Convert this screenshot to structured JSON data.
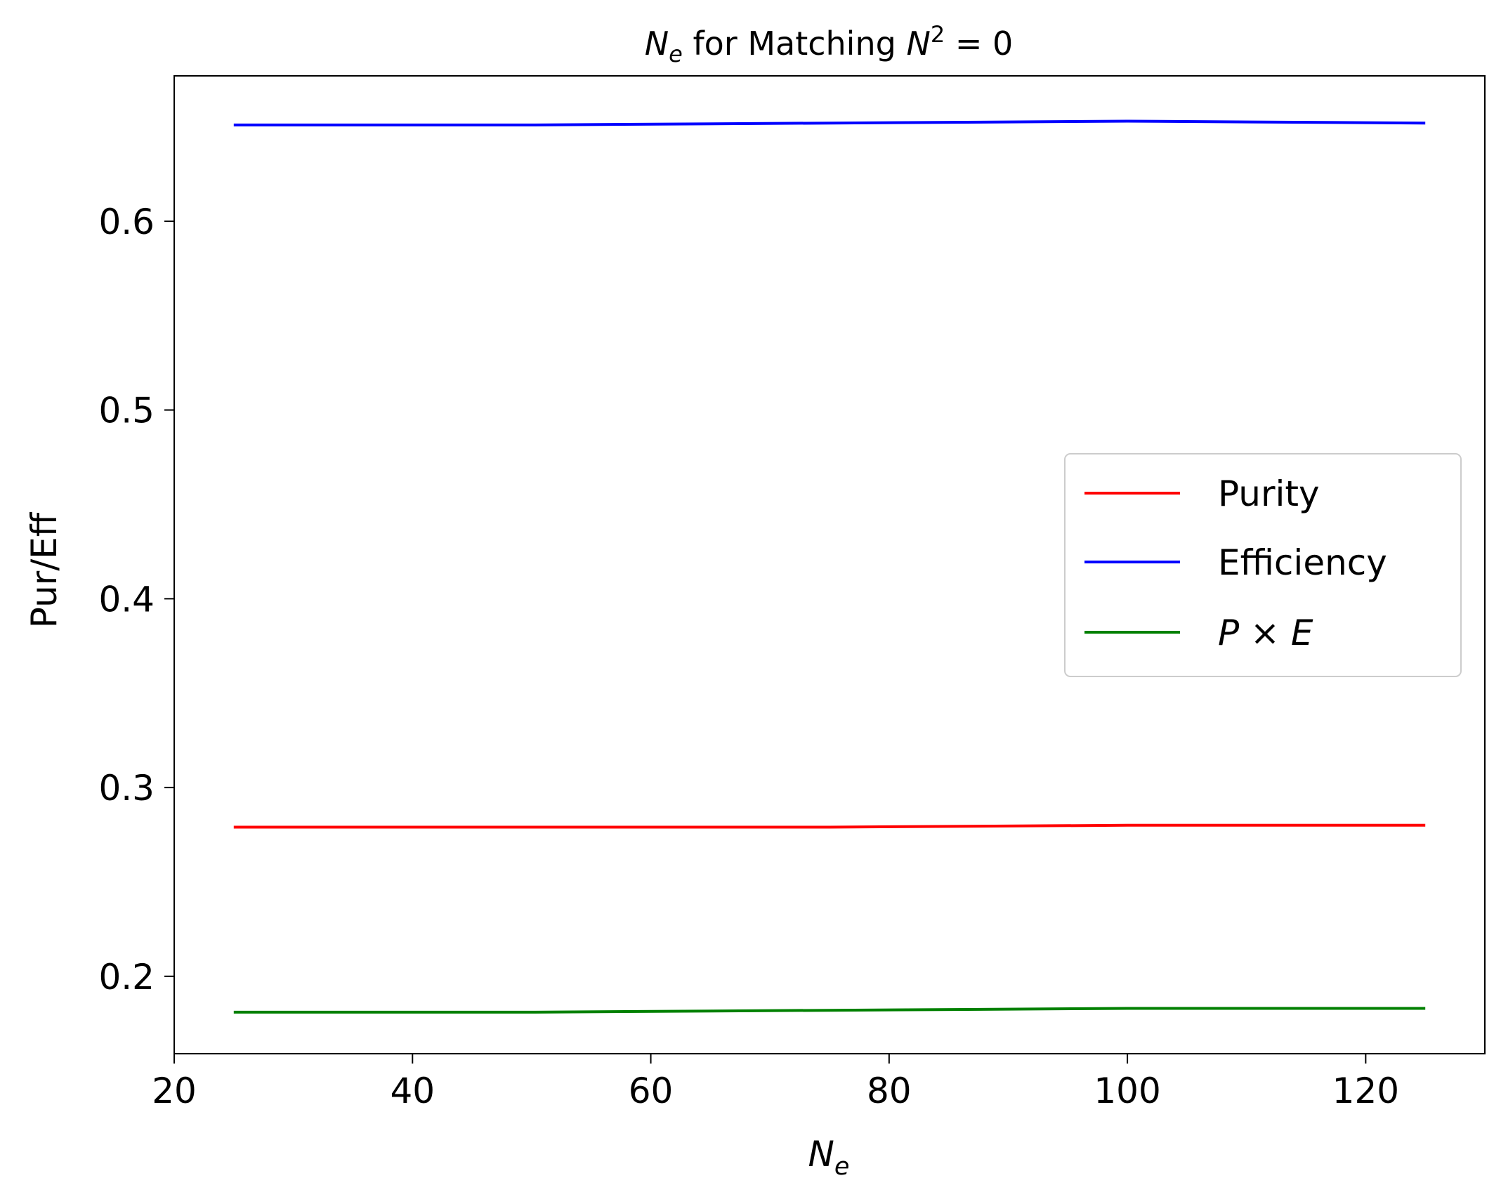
{
  "chart_data": {
    "type": "line",
    "title": {
      "base": "N",
      "sub": "e",
      "mid": " for Matching ",
      "base2": "N",
      "sup": "2",
      "tail": " = 0"
    },
    "xlabel": {
      "base": "N",
      "sub": "e"
    },
    "ylabel": "Pur/Eff",
    "xlim": [
      20,
      130
    ],
    "ylim": [
      0.159,
      0.677
    ],
    "xticks": [
      "20",
      "40",
      "60",
      "80",
      "100",
      "120"
    ],
    "xtick_values": [
      20,
      40,
      60,
      80,
      100,
      120
    ],
    "yticks": [
      "0.2",
      "0.3",
      "0.4",
      "0.5",
      "0.6"
    ],
    "ytick_values": [
      0.2,
      0.3,
      0.4,
      0.5,
      0.6
    ],
    "grid": false,
    "legend_position": "center-right",
    "x": [
      25,
      50,
      75,
      100,
      125
    ],
    "series": [
      {
        "name": "Purity",
        "color": "#ff0000",
        "values": [
          0.279,
          0.279,
          0.279,
          0.28,
          0.28
        ]
      },
      {
        "name": "Efficiency",
        "color": "#0000ff",
        "values": [
          0.651,
          0.651,
          0.652,
          0.653,
          0.652
        ]
      },
      {
        "name": "P × E",
        "color": "#008000",
        "values": [
          0.181,
          0.181,
          0.182,
          0.183,
          0.183
        ]
      }
    ]
  }
}
